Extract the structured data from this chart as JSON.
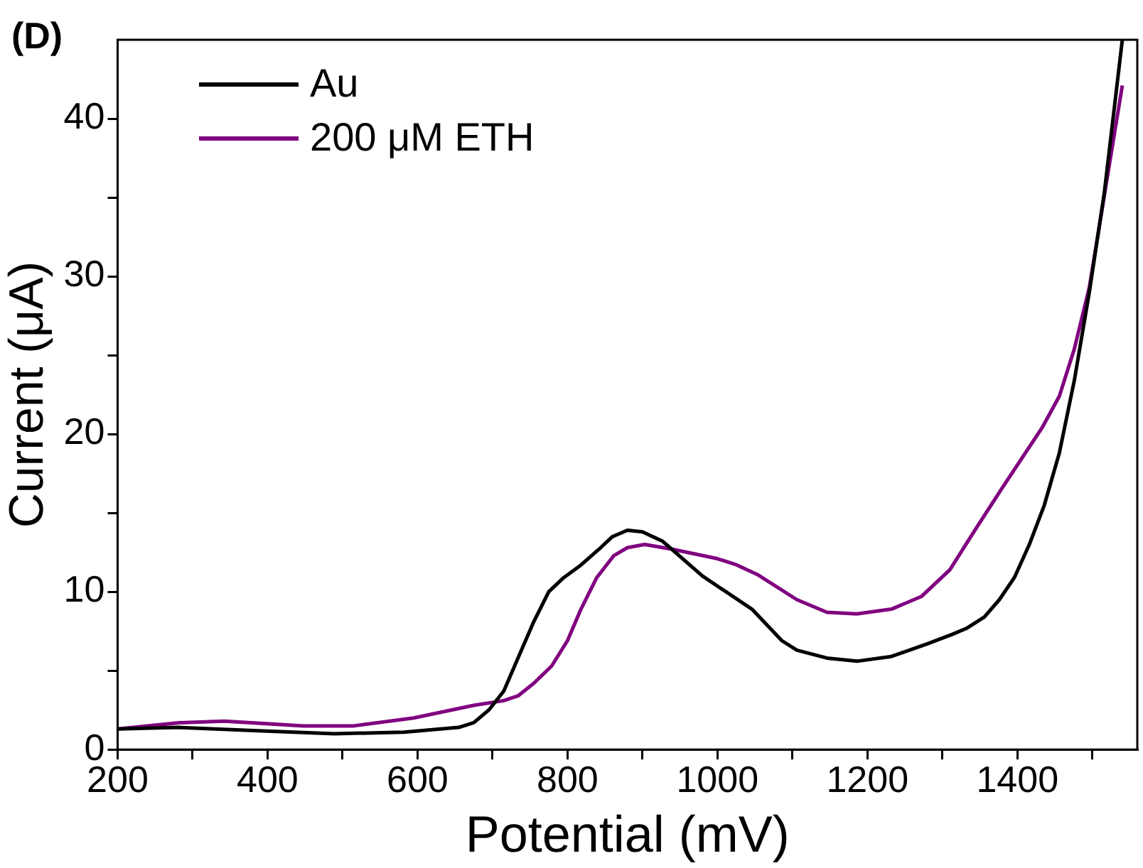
{
  "chart_data": {
    "type": "line",
    "xlabel": "Potential (mV)",
    "ylabel": "Current (μA)",
    "annotations": [
      "(D)"
    ],
    "xlim": [
      200,
      1560
    ],
    "ylim": [
      0,
      45
    ],
    "xticks": [
      200,
      {
        "value": 300,
        "label": null
      },
      400,
      {
        "value": 500,
        "label": null
      },
      600,
      {
        "value": 700,
        "label": null
      },
      800,
      {
        "value": 900,
        "label": null
      },
      1000,
      {
        "value": 1100,
        "label": null
      },
      1200,
      {
        "value": 1300,
        "label": null
      },
      1400,
      {
        "value": 1500,
        "label": null
      }
    ],
    "yticks": [
      0,
      {
        "value": 5,
        "label": null
      },
      10,
      {
        "value": 15,
        "label": null
      },
      20,
      {
        "value": 25,
        "label": null
      },
      30,
      {
        "value": 35,
        "label": null
      },
      40
    ],
    "grid": false,
    "legend": "top left",
    "marker": "none",
    "line_style": "solid",
    "series": [
      {
        "name": "Au",
        "color": "#000000",
        "x": [
          200,
          282,
          381,
          489,
          582,
          655,
          675,
          695,
          715,
          734,
          755,
          775,
          795,
          818,
          842,
          860,
          880,
          900,
          927,
          980,
          1046,
          1086,
          1106,
          1146,
          1186,
          1232,
          1280,
          1313,
          1333,
          1356,
          1376,
          1396,
          1416,
          1436,
          1456,
          1476,
          1496,
          1516,
          1540
        ],
        "values": [
          1.3,
          1.4,
          1.2,
          1.0,
          1.1,
          1.4,
          1.7,
          2.5,
          3.7,
          5.8,
          8.1,
          10.0,
          10.9,
          11.7,
          12.7,
          13.5,
          13.9,
          13.8,
          13.2,
          11.0,
          8.9,
          6.9,
          6.3,
          5.8,
          5.6,
          5.9,
          6.7,
          7.3,
          7.7,
          8.4,
          9.5,
          10.9,
          13.0,
          15.5,
          18.8,
          23.4,
          29.0,
          35.3,
          45
        ]
      },
      {
        "name": "200 μM ETH",
        "color": "#800080",
        "x": [
          200,
          282,
          342,
          448,
          515,
          595,
          675,
          715,
          734,
          755,
          779,
          800,
          818,
          839,
          862,
          880,
          903,
          940,
          1000,
          1026,
          1053,
          1106,
          1146,
          1186,
          1232,
          1272,
          1310,
          1346,
          1380,
          1433,
          1456,
          1476,
          1496,
          1519,
          1540
        ],
        "values": [
          1.3,
          1.7,
          1.8,
          1.5,
          1.5,
          2.0,
          2.8,
          3.1,
          3.4,
          4.2,
          5.3,
          6.9,
          8.9,
          10.9,
          12.3,
          12.8,
          13.0,
          12.7,
          12.1,
          11.7,
          11.1,
          9.5,
          8.7,
          8.6,
          8.9,
          9.7,
          11.4,
          14.1,
          16.6,
          20.4,
          22.4,
          25.4,
          29.3,
          36.0,
          42.1
        ]
      }
    ]
  }
}
